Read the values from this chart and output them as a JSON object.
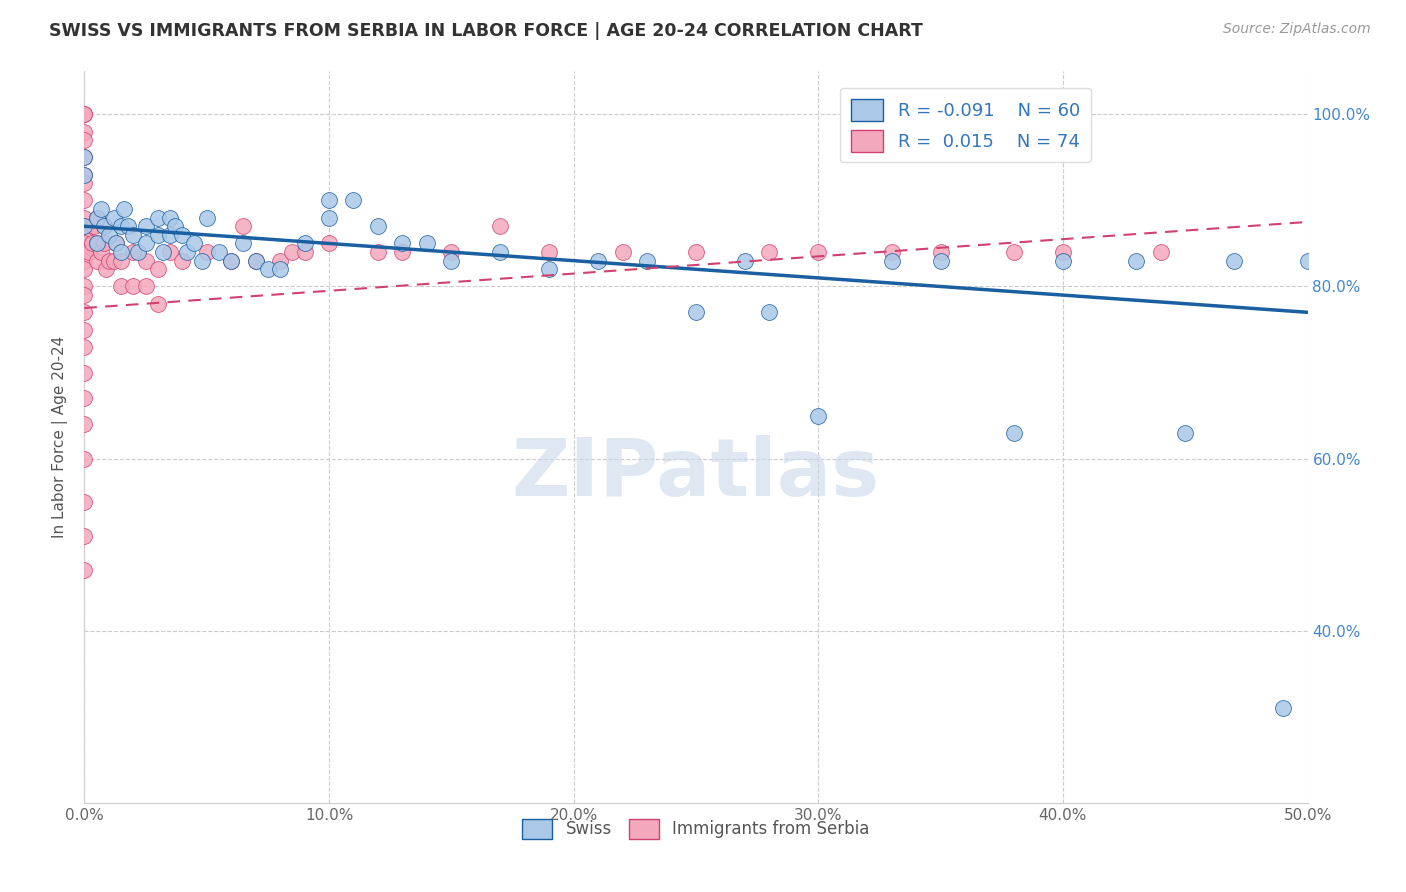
{
  "title": "SWISS VS IMMIGRANTS FROM SERBIA IN LABOR FORCE | AGE 20-24 CORRELATION CHART",
  "source": "Source: ZipAtlas.com",
  "ylabel": "In Labor Force | Age 20-24",
  "xlim": [
    0.0,
    0.5
  ],
  "ylim": [
    0.2,
    1.05
  ],
  "xticks": [
    0.0,
    0.1,
    0.2,
    0.3,
    0.4,
    0.5
  ],
  "xtick_labels": [
    "0.0%",
    "10.0%",
    "20.0%",
    "30.0%",
    "40.0%",
    "50.0%"
  ],
  "ytick_labels_right": [
    "100.0%",
    "80.0%",
    "60.0%",
    "40.0%"
  ],
  "ytick_vals_right": [
    1.0,
    0.8,
    0.6,
    0.4
  ],
  "swiss_color": "#aac8e8",
  "serbia_color": "#f4a8bc",
  "trendline_swiss_color": "#1a5fa0",
  "trendline_serbia_color": "#d04070",
  "background_color": "#ffffff",
  "grid_color": "#cccccc",
  "watermark_color": "#c8d8ea",
  "swiss_trendline_x": [
    0.0,
    0.5
  ],
  "swiss_trendline_y": [
    0.87,
    0.77
  ],
  "serbia_trendline_x": [
    0.0,
    0.5
  ],
  "serbia_trendline_y": [
    0.775,
    0.875
  ],
  "swiss_x": [
    0.0,
    0.0,
    0.0,
    0.005,
    0.005,
    0.007,
    0.008,
    0.01,
    0.012,
    0.013,
    0.015,
    0.015,
    0.016,
    0.018,
    0.02,
    0.022,
    0.025,
    0.025,
    0.03,
    0.03,
    0.032,
    0.035,
    0.035,
    0.037,
    0.04,
    0.042,
    0.045,
    0.048,
    0.05,
    0.055,
    0.06,
    0.065,
    0.07,
    0.075,
    0.08,
    0.09,
    0.1,
    0.1,
    0.11,
    0.12,
    0.13,
    0.14,
    0.15,
    0.17,
    0.19,
    0.21,
    0.23,
    0.25,
    0.27,
    0.28,
    0.3,
    0.33,
    0.35,
    0.38,
    0.4,
    0.43,
    0.45,
    0.47,
    0.49,
    0.5
  ],
  "swiss_y": [
    0.87,
    0.93,
    0.95,
    0.85,
    0.88,
    0.89,
    0.87,
    0.86,
    0.88,
    0.85,
    0.87,
    0.84,
    0.89,
    0.87,
    0.86,
    0.84,
    0.87,
    0.85,
    0.88,
    0.86,
    0.84,
    0.88,
    0.86,
    0.87,
    0.86,
    0.84,
    0.85,
    0.83,
    0.88,
    0.84,
    0.83,
    0.85,
    0.83,
    0.82,
    0.82,
    0.85,
    0.88,
    0.9,
    0.9,
    0.87,
    0.85,
    0.85,
    0.83,
    0.84,
    0.82,
    0.83,
    0.83,
    0.77,
    0.83,
    0.77,
    0.65,
    0.83,
    0.83,
    0.63,
    0.83,
    0.83,
    0.63,
    0.83,
    0.31,
    0.83
  ],
  "serbia_x": [
    0.0,
    0.0,
    0.0,
    0.0,
    0.0,
    0.0,
    0.0,
    0.0,
    0.0,
    0.0,
    0.0,
    0.0,
    0.0,
    0.0,
    0.0,
    0.0,
    0.0,
    0.0,
    0.0,
    0.0,
    0.0,
    0.0,
    0.0,
    0.0,
    0.0,
    0.0,
    0.0,
    0.0,
    0.002,
    0.003,
    0.003,
    0.004,
    0.005,
    0.005,
    0.005,
    0.007,
    0.008,
    0.008,
    0.009,
    0.01,
    0.012,
    0.013,
    0.015,
    0.015,
    0.02,
    0.02,
    0.025,
    0.025,
    0.03,
    0.03,
    0.035,
    0.04,
    0.05,
    0.06,
    0.065,
    0.07,
    0.08,
    0.085,
    0.09,
    0.1,
    0.12,
    0.13,
    0.15,
    0.17,
    0.19,
    0.22,
    0.25,
    0.28,
    0.3,
    0.33,
    0.35,
    0.38,
    0.4,
    0.44
  ],
  "serbia_y": [
    1.0,
    1.0,
    1.0,
    0.98,
    0.97,
    0.95,
    0.93,
    0.92,
    0.9,
    0.88,
    0.87,
    0.86,
    0.85,
    0.84,
    0.83,
    0.82,
    0.8,
    0.79,
    0.77,
    0.75,
    0.73,
    0.7,
    0.67,
    0.64,
    0.6,
    0.55,
    0.51,
    0.47,
    0.84,
    0.87,
    0.85,
    0.87,
    0.83,
    0.85,
    0.88,
    0.84,
    0.85,
    0.87,
    0.82,
    0.83,
    0.83,
    0.85,
    0.83,
    0.8,
    0.84,
    0.8,
    0.83,
    0.8,
    0.82,
    0.78,
    0.84,
    0.83,
    0.84,
    0.83,
    0.87,
    0.83,
    0.83,
    0.84,
    0.84,
    0.85,
    0.84,
    0.84,
    0.84,
    0.87,
    0.84,
    0.84,
    0.84,
    0.84,
    0.84,
    0.84,
    0.84,
    0.84,
    0.84,
    0.84
  ]
}
